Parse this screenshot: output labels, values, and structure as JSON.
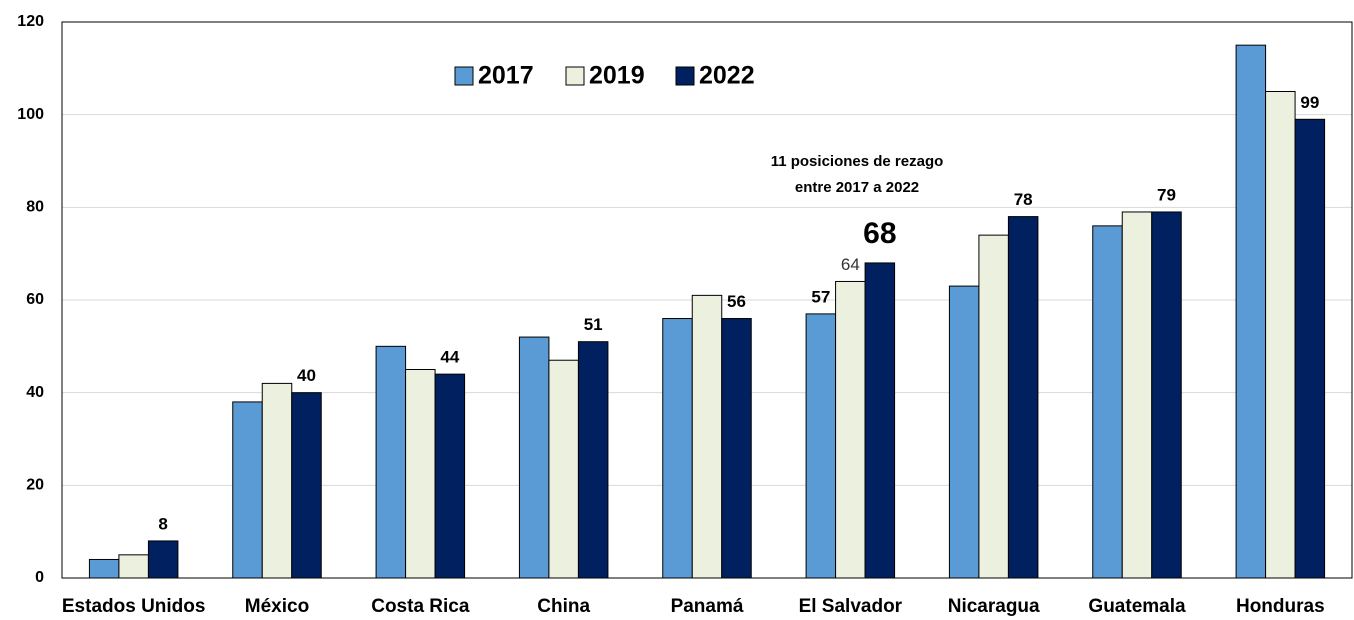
{
  "chart_data": {
    "type": "bar",
    "categories": [
      "Estados Unidos",
      "México",
      "Costa Rica",
      "China",
      "Panamá",
      "El Salvador",
      "Nicaragua",
      "Guatemala",
      "Honduras"
    ],
    "series": [
      {
        "name": "2017",
        "color": "#5b9bd5",
        "values": [
          4,
          38,
          50,
          52,
          56,
          57,
          63,
          76,
          115
        ],
        "value_labels": [
          null,
          null,
          null,
          null,
          null,
          "57",
          null,
          null,
          null
        ]
      },
      {
        "name": "2019",
        "color": "#ebf1de",
        "values": [
          5,
          42,
          45,
          47,
          61,
          64,
          74,
          79,
          105
        ],
        "value_labels": [
          null,
          null,
          null,
          null,
          null,
          "64",
          null,
          null,
          null
        ]
      },
      {
        "name": "2022",
        "color": "#002060",
        "values": [
          8,
          40,
          44,
          51,
          56,
          68,
          78,
          79,
          99
        ],
        "value_labels": [
          "8",
          "40",
          "44",
          "51",
          "56",
          "68",
          "78",
          "79",
          "99"
        ]
      }
    ],
    "annotation": [
      "11 posiciones de rezago",
      "entre 2017 a 2022"
    ],
    "ylim": [
      0,
      120
    ],
    "yticks": [
      0,
      20,
      40,
      60,
      80,
      100,
      120
    ],
    "grid": true,
    "legend": "top"
  }
}
